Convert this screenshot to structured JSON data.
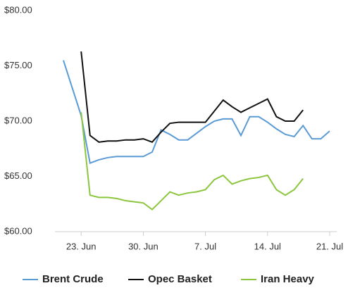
{
  "chart_data": {
    "type": "line",
    "categories": [
      null,
      null,
      "23. Jun",
      null,
      null,
      null,
      null,
      null,
      null,
      "30. Jun",
      null,
      null,
      null,
      null,
      null,
      null,
      "7. Jul",
      null,
      null,
      null,
      null,
      null,
      null,
      "14. Jul",
      null,
      null,
      null,
      null,
      null,
      null,
      "21. Jul"
    ],
    "series": [
      {
        "name": "Brent Crude",
        "color": "#5b9bd5",
        "values": [
          75.5,
          73,
          70.5,
          66.2,
          66.5,
          66.7,
          66.8,
          66.8,
          66.8,
          66.8,
          67.2,
          69.2,
          68.8,
          68.3,
          68.3,
          68.9,
          69.5,
          70.0,
          70.2,
          70.2,
          68.7,
          70.4,
          70.4,
          69.9,
          69.3,
          68.8,
          68.6,
          69.6,
          68.4,
          68.4,
          69.1
        ]
      },
      {
        "name": "Opec Basket",
        "color": "#111111",
        "values": [
          null,
          null,
          76.3,
          68.7,
          68.1,
          68.2,
          68.2,
          68.3,
          68.3,
          68.4,
          68.1,
          69.0,
          69.8,
          69.9,
          69.9,
          69.9,
          69.9,
          70.9,
          71.9,
          71.3,
          70.8,
          71.2,
          71.6,
          72.0,
          70.4,
          70.0,
          70.0,
          71.0,
          null,
          null,
          null
        ]
      },
      {
        "name": "Iran Heavy",
        "color": "#8cc63f",
        "values": [
          null,
          null,
          70.8,
          63.3,
          63.1,
          63.1,
          63.0,
          62.8,
          62.7,
          62.6,
          62.0,
          62.8,
          63.6,
          63.3,
          63.5,
          63.6,
          63.8,
          64.7,
          65.1,
          64.3,
          64.6,
          64.8,
          64.9,
          65.1,
          63.8,
          63.3,
          63.8,
          64.8,
          null,
          null,
          null
        ]
      }
    ],
    "ylim": [
      60,
      80
    ],
    "yticks": [
      {
        "value": 60,
        "label": "$60.00"
      },
      {
        "value": 65,
        "label": "$65.00"
      },
      {
        "value": 70,
        "label": "$70.00"
      },
      {
        "value": 75,
        "label": "$75.00"
      },
      {
        "value": 80,
        "label": "$80.00"
      }
    ],
    "grid": false
  }
}
